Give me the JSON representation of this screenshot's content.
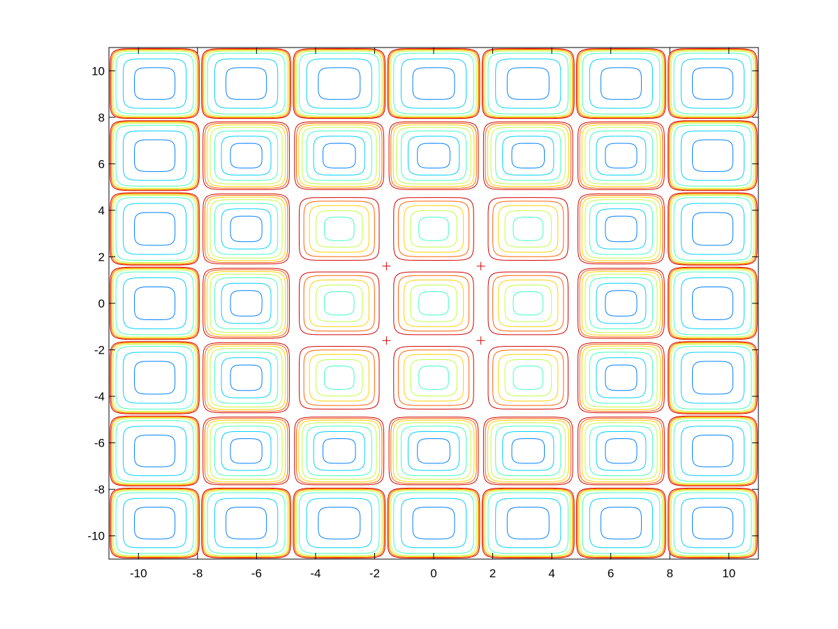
{
  "chart_data": {
    "type": "contour",
    "title": "",
    "xlabel": "",
    "ylabel": "",
    "xlim": [
      -11,
      11
    ],
    "ylim": [
      -11,
      11
    ],
    "x_ticks": [
      -10,
      -8,
      -6,
      -4,
      -2,
      0,
      2,
      4,
      6,
      8,
      10
    ],
    "y_ticks": [
      -10,
      -8,
      -6,
      -4,
      -2,
      0,
      2,
      4,
      6,
      8,
      10
    ],
    "x_tick_labels": [
      "-10",
      "-8",
      "-6",
      "-4",
      "-2",
      "0",
      "2",
      "4",
      "6",
      "8",
      "10"
    ],
    "y_tick_labels": [
      "-10",
      "-8",
      "-6",
      "-4",
      "-2",
      "0",
      "2",
      "4",
      "6",
      "8",
      "10"
    ],
    "cell_columns_x": [
      -9.6,
      -6.5,
      -3.3,
      0,
      3.3,
      6.5,
      9.6
    ],
    "cell_rows_y": [
      9.6,
      6.5,
      3.3,
      0,
      -3.3,
      -6.5,
      -9.6
    ],
    "cell_boundaries": [
      -7.9,
      -4.8,
      -1.6,
      1.6,
      4.8,
      7.9
    ],
    "level_colors": [
      "#00007f",
      "#0000ff",
      "#007fff",
      "#00d0ff",
      "#40ffbf",
      "#bfff40",
      "#ffd000",
      "#ff6000",
      "#d00000"
    ],
    "grid": false,
    "legend": "none"
  }
}
